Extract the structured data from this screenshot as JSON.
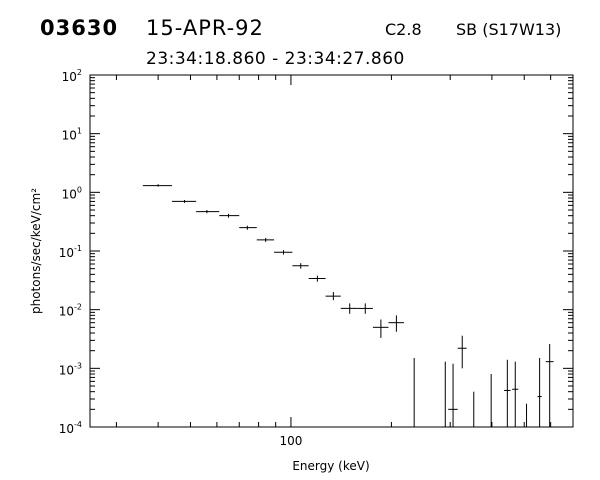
{
  "header": {
    "event_id": "03630",
    "date": "15-APR-92",
    "goes_class": "C2.8",
    "location": "SB (S17W13)",
    "time_range": "23:34:18.860 - 23:34:27.860"
  },
  "chart_data": {
    "type": "scatter",
    "xlabel": "Energy (keV)",
    "ylabel": "photons/sec/keV/cm²",
    "x_scale": "log",
    "y_scale": "log",
    "xlim": [
      25,
      700
    ],
    "ylim": [
      0.0001,
      100
    ],
    "x_tick_labels": [
      "100"
    ],
    "y_tick_labels": [
      {
        "base": "10",
        "exp": "-4"
      },
      {
        "base": "10",
        "exp": "-3"
      },
      {
        "base": "10",
        "exp": "-2"
      },
      {
        "base": "10",
        "exp": "-1"
      },
      {
        "base": "10",
        "exp": "0"
      },
      {
        "base": "10",
        "exp": "1"
      },
      {
        "base": "10",
        "exp": "2"
      }
    ],
    "grid": false,
    "points": [
      {
        "x": 40,
        "xlo": 36,
        "xhi": 44,
        "y": 1.3,
        "ylo": 1.25,
        "yhi": 1.38
      },
      {
        "x": 48,
        "xlo": 44,
        "xhi": 52,
        "y": 0.7,
        "ylo": 0.66,
        "yhi": 0.74
      },
      {
        "x": 56,
        "xlo": 52,
        "xhi": 61,
        "y": 0.47,
        "ylo": 0.44,
        "yhi": 0.5
      },
      {
        "x": 65,
        "xlo": 61,
        "xhi": 70,
        "y": 0.4,
        "ylo": 0.37,
        "yhi": 0.43
      },
      {
        "x": 74,
        "xlo": 70,
        "xhi": 79,
        "y": 0.25,
        "ylo": 0.23,
        "yhi": 0.27
      },
      {
        "x": 84,
        "xlo": 79,
        "xhi": 89,
        "y": 0.155,
        "ylo": 0.143,
        "yhi": 0.167
      },
      {
        "x": 95,
        "xlo": 89,
        "xhi": 101,
        "y": 0.095,
        "ylo": 0.087,
        "yhi": 0.103
      },
      {
        "x": 107,
        "xlo": 101,
        "xhi": 113,
        "y": 0.056,
        "ylo": 0.05,
        "yhi": 0.062
      },
      {
        "x": 120,
        "xlo": 113,
        "xhi": 127,
        "y": 0.034,
        "ylo": 0.03,
        "yhi": 0.038
      },
      {
        "x": 134,
        "xlo": 127,
        "xhi": 141,
        "y": 0.017,
        "ylo": 0.0145,
        "yhi": 0.02
      },
      {
        "x": 150,
        "xlo": 141,
        "xhi": 158,
        "y": 0.0105,
        "ylo": 0.0085,
        "yhi": 0.0128
      },
      {
        "x": 167,
        "xlo": 158,
        "xhi": 176,
        "y": 0.0105,
        "ylo": 0.0085,
        "yhi": 0.0128
      },
      {
        "x": 186,
        "xlo": 176,
        "xhi": 196,
        "y": 0.005,
        "ylo": 0.0033,
        "yhi": 0.0068
      },
      {
        "x": 207,
        "xlo": 196,
        "xhi": 218,
        "y": 0.006,
        "ylo": 0.0042,
        "yhi": 0.008
      },
      {
        "x": 234,
        "xlo": 234,
        "xhi": 234,
        "y": null,
        "ylo": 0.0001,
        "yhi": 0.0015
      },
      {
        "x": 290,
        "xlo": 290,
        "xhi": 290,
        "y": null,
        "ylo": 0.0001,
        "yhi": 0.0013
      },
      {
        "x": 306,
        "xlo": 296,
        "xhi": 316,
        "y": 0.0002,
        "ylo": 0.0001,
        "yhi": 0.0012
      },
      {
        "x": 326,
        "xlo": 316,
        "xhi": 336,
        "y": 0.0022,
        "ylo": 0.001,
        "yhi": 0.0036
      },
      {
        "x": 353,
        "xlo": 353,
        "xhi": 353,
        "y": null,
        "ylo": 0.0001,
        "yhi": 0.0004
      },
      {
        "x": 398,
        "xlo": 398,
        "xhi": 398,
        "y": null,
        "ylo": 0.0001,
        "yhi": 0.0008
      },
      {
        "x": 445,
        "xlo": 435,
        "xhi": 455,
        "y": 0.00042,
        "ylo": 0.0001,
        "yhi": 0.0014
      },
      {
        "x": 470,
        "xlo": 460,
        "xhi": 480,
        "y": 0.00044,
        "ylo": 0.0001,
        "yhi": 0.0013
      },
      {
        "x": 508,
        "xlo": 508,
        "xhi": 508,
        "y": null,
        "ylo": 0.0001,
        "yhi": 0.00025
      },
      {
        "x": 556,
        "xlo": 548,
        "xhi": 564,
        "y": 0.00033,
        "ylo": 0.0001,
        "yhi": 0.0015
      },
      {
        "x": 596,
        "xlo": 580,
        "xhi": 612,
        "y": 0.0013,
        "ylo": 0.0001,
        "yhi": 0.0026
      }
    ]
  }
}
